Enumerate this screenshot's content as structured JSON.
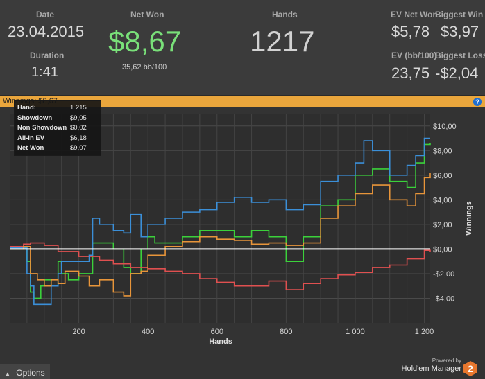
{
  "stats": {
    "date_label": "Date",
    "date_value": "23.04.2015",
    "duration_label": "Duration",
    "duration_value": "1:41",
    "net_won_label": "Net Won",
    "net_won_value": "$8,67",
    "net_won_sub": "35,62 bb/100",
    "hands_label": "Hands",
    "hands_value": "1217",
    "ev_net_won_label": "EV Net Won",
    "ev_net_won_value": "$5,78",
    "biggest_win_label": "Biggest Win",
    "biggest_win_value": "$3,97",
    "ev_bb_label": "EV (bb/100)",
    "ev_bb_value": "23,75",
    "biggest_loss_label": "Biggest Loss",
    "biggest_loss_value": "-$2,04"
  },
  "header_bar": {
    "label": "Winnings:",
    "value": "$8,67",
    "help_icon": "?"
  },
  "tooltip": {
    "rows": [
      {
        "label": "Hand:",
        "value": "1 215"
      },
      {
        "label": "Showdown",
        "value": "$9,05"
      },
      {
        "label": "Non Showdown",
        "value": "$0,02"
      },
      {
        "label": "All-In EV",
        "value": "$6,18"
      },
      {
        "label": "Net Won",
        "value": "$9,07"
      }
    ]
  },
  "footer": {
    "options_label": "Options",
    "powered_by": "Powered by",
    "brand": "Hold'em Manager",
    "brand_version": "2"
  },
  "chart_data": {
    "type": "line",
    "xlabel": "Hands",
    "ylabel": "Winnings",
    "xlim": [
      0,
      1217
    ],
    "ylim": [
      -6,
      11
    ],
    "x_ticks": [
      200,
      400,
      600,
      800,
      1000,
      1200
    ],
    "x_tick_labels": [
      "200",
      "400",
      "600",
      "800",
      "1 000",
      "1 200"
    ],
    "y_ticks": [
      -4,
      -2,
      0,
      2,
      4,
      6,
      8,
      10
    ],
    "y_tick_labels": [
      "-$4,00",
      "-$2,00",
      "$0,00",
      "$2,00",
      "$4,00",
      "$6,00",
      "$8,00",
      "$10,00"
    ],
    "grid": true,
    "series": [
      {
        "name": "Net Won",
        "color": "#3bd13b",
        "x": [
          0,
          40,
          50,
          60,
          70,
          90,
          100,
          120,
          140,
          150,
          170,
          200,
          230,
          240,
          260,
          300,
          330,
          350,
          380,
          400,
          420,
          450,
          500,
          550,
          600,
          650,
          700,
          750,
          800,
          850,
          900,
          950,
          1000,
          1050,
          1100,
          1150,
          1175,
          1200,
          1217
        ],
        "y": [
          0,
          0.1,
          -1,
          -3.5,
          -4,
          -3,
          -2.5,
          -3,
          -1,
          -2,
          -2.5,
          -2,
          -2,
          0.5,
          0.5,
          0,
          -1.5,
          -2,
          0,
          1,
          0.5,
          0.5,
          1,
          1.5,
          1.5,
          1,
          1.5,
          1,
          -1,
          1,
          3.5,
          4,
          6,
          6.5,
          5.5,
          5,
          7,
          8.5,
          8.6
        ]
      },
      {
        "name": "Non Showdown",
        "color": "#e05050",
        "x": [
          0,
          40,
          60,
          100,
          140,
          200,
          260,
          300,
          350,
          400,
          450,
          500,
          550,
          600,
          650,
          700,
          750,
          800,
          850,
          900,
          950,
          1000,
          1050,
          1100,
          1150,
          1200,
          1217
        ],
        "y": [
          0.2,
          0.4,
          0.5,
          0.3,
          -0.2,
          -0.6,
          -0.9,
          -1.2,
          -1.5,
          -1.6,
          -1.8,
          -2,
          -2.4,
          -2.7,
          -3,
          -3,
          -2.6,
          -3.3,
          -2.8,
          -2.4,
          -2.1,
          -1.9,
          -1.5,
          -1.3,
          -0.8,
          -0.1,
          -0.2
        ]
      },
      {
        "name": "Showdown",
        "color": "#3b8fd8",
        "x": [
          0,
          40,
          50,
          60,
          70,
          100,
          120,
          140,
          150,
          200,
          230,
          240,
          260,
          300,
          330,
          350,
          380,
          400,
          450,
          500,
          550,
          600,
          650,
          700,
          750,
          800,
          850,
          900,
          950,
          1000,
          1025,
          1050,
          1100,
          1150,
          1175,
          1200,
          1217
        ],
        "y": [
          0.1,
          0.1,
          -2,
          -3,
          -4.5,
          -4.5,
          -3,
          -2,
          -1,
          -1,
          -0.5,
          2.5,
          2,
          1.5,
          1.3,
          2.8,
          1,
          2,
          2.5,
          3,
          3.2,
          3.8,
          4.2,
          3.8,
          4,
          3.2,
          3.6,
          5.5,
          6,
          7,
          8.8,
          8,
          6,
          6.8,
          7.6,
          9,
          9
        ]
      },
      {
        "name": "All-In EV",
        "color": "#e8953a",
        "x": [
          0,
          40,
          60,
          80,
          100,
          120,
          140,
          160,
          200,
          230,
          260,
          300,
          330,
          350,
          380,
          400,
          450,
          500,
          550,
          600,
          650,
          700,
          750,
          800,
          850,
          900,
          950,
          1000,
          1050,
          1100,
          1150,
          1175,
          1200,
          1217
        ],
        "y": [
          0,
          0.2,
          -2,
          -2.5,
          -3,
          -2.5,
          -2.8,
          -1.8,
          -2.2,
          -3,
          -2.5,
          -3.5,
          -3.8,
          -2,
          -1.8,
          -0.5,
          0.2,
          0.6,
          1,
          0.8,
          0.7,
          0.4,
          0.5,
          0.3,
          0.5,
          2.5,
          3.5,
          4.5,
          5.2,
          4,
          3.5,
          4.5,
          5.8,
          6.2
        ]
      }
    ]
  }
}
